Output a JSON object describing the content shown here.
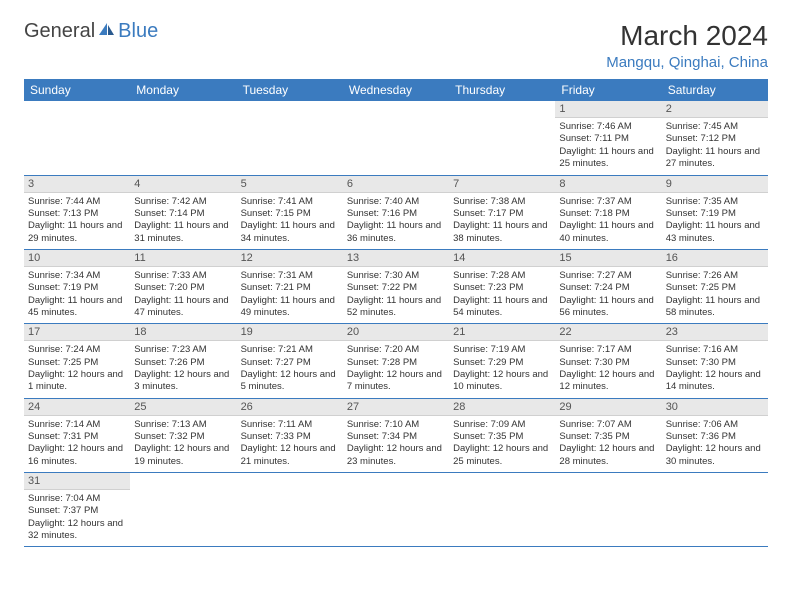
{
  "logo": {
    "text1": "General",
    "text2": "Blue"
  },
  "title": "March 2024",
  "location": "Mangqu, Qinghai, China",
  "weekdays": [
    "Sunday",
    "Monday",
    "Tuesday",
    "Wednesday",
    "Thursday",
    "Friday",
    "Saturday"
  ],
  "colors": {
    "header_bg": "#3b7bbf",
    "header_text": "#ffffff",
    "daynum_bg": "#e8e8e8",
    "row_border": "#3b7bbf",
    "accent": "#3b7bbf"
  },
  "weeks": [
    [
      null,
      null,
      null,
      null,
      null,
      {
        "n": "1",
        "sr": "Sunrise: 7:46 AM",
        "ss": "Sunset: 7:11 PM",
        "dl": "Daylight: 11 hours and 25 minutes."
      },
      {
        "n": "2",
        "sr": "Sunrise: 7:45 AM",
        "ss": "Sunset: 7:12 PM",
        "dl": "Daylight: 11 hours and 27 minutes."
      }
    ],
    [
      {
        "n": "3",
        "sr": "Sunrise: 7:44 AM",
        "ss": "Sunset: 7:13 PM",
        "dl": "Daylight: 11 hours and 29 minutes."
      },
      {
        "n": "4",
        "sr": "Sunrise: 7:42 AM",
        "ss": "Sunset: 7:14 PM",
        "dl": "Daylight: 11 hours and 31 minutes."
      },
      {
        "n": "5",
        "sr": "Sunrise: 7:41 AM",
        "ss": "Sunset: 7:15 PM",
        "dl": "Daylight: 11 hours and 34 minutes."
      },
      {
        "n": "6",
        "sr": "Sunrise: 7:40 AM",
        "ss": "Sunset: 7:16 PM",
        "dl": "Daylight: 11 hours and 36 minutes."
      },
      {
        "n": "7",
        "sr": "Sunrise: 7:38 AM",
        "ss": "Sunset: 7:17 PM",
        "dl": "Daylight: 11 hours and 38 minutes."
      },
      {
        "n": "8",
        "sr": "Sunrise: 7:37 AM",
        "ss": "Sunset: 7:18 PM",
        "dl": "Daylight: 11 hours and 40 minutes."
      },
      {
        "n": "9",
        "sr": "Sunrise: 7:35 AM",
        "ss": "Sunset: 7:19 PM",
        "dl": "Daylight: 11 hours and 43 minutes."
      }
    ],
    [
      {
        "n": "10",
        "sr": "Sunrise: 7:34 AM",
        "ss": "Sunset: 7:19 PM",
        "dl": "Daylight: 11 hours and 45 minutes."
      },
      {
        "n": "11",
        "sr": "Sunrise: 7:33 AM",
        "ss": "Sunset: 7:20 PM",
        "dl": "Daylight: 11 hours and 47 minutes."
      },
      {
        "n": "12",
        "sr": "Sunrise: 7:31 AM",
        "ss": "Sunset: 7:21 PM",
        "dl": "Daylight: 11 hours and 49 minutes."
      },
      {
        "n": "13",
        "sr": "Sunrise: 7:30 AM",
        "ss": "Sunset: 7:22 PM",
        "dl": "Daylight: 11 hours and 52 minutes."
      },
      {
        "n": "14",
        "sr": "Sunrise: 7:28 AM",
        "ss": "Sunset: 7:23 PM",
        "dl": "Daylight: 11 hours and 54 minutes."
      },
      {
        "n": "15",
        "sr": "Sunrise: 7:27 AM",
        "ss": "Sunset: 7:24 PM",
        "dl": "Daylight: 11 hours and 56 minutes."
      },
      {
        "n": "16",
        "sr": "Sunrise: 7:26 AM",
        "ss": "Sunset: 7:25 PM",
        "dl": "Daylight: 11 hours and 58 minutes."
      }
    ],
    [
      {
        "n": "17",
        "sr": "Sunrise: 7:24 AM",
        "ss": "Sunset: 7:25 PM",
        "dl": "Daylight: 12 hours and 1 minute."
      },
      {
        "n": "18",
        "sr": "Sunrise: 7:23 AM",
        "ss": "Sunset: 7:26 PM",
        "dl": "Daylight: 12 hours and 3 minutes."
      },
      {
        "n": "19",
        "sr": "Sunrise: 7:21 AM",
        "ss": "Sunset: 7:27 PM",
        "dl": "Daylight: 12 hours and 5 minutes."
      },
      {
        "n": "20",
        "sr": "Sunrise: 7:20 AM",
        "ss": "Sunset: 7:28 PM",
        "dl": "Daylight: 12 hours and 7 minutes."
      },
      {
        "n": "21",
        "sr": "Sunrise: 7:19 AM",
        "ss": "Sunset: 7:29 PM",
        "dl": "Daylight: 12 hours and 10 minutes."
      },
      {
        "n": "22",
        "sr": "Sunrise: 7:17 AM",
        "ss": "Sunset: 7:30 PM",
        "dl": "Daylight: 12 hours and 12 minutes."
      },
      {
        "n": "23",
        "sr": "Sunrise: 7:16 AM",
        "ss": "Sunset: 7:30 PM",
        "dl": "Daylight: 12 hours and 14 minutes."
      }
    ],
    [
      {
        "n": "24",
        "sr": "Sunrise: 7:14 AM",
        "ss": "Sunset: 7:31 PM",
        "dl": "Daylight: 12 hours and 16 minutes."
      },
      {
        "n": "25",
        "sr": "Sunrise: 7:13 AM",
        "ss": "Sunset: 7:32 PM",
        "dl": "Daylight: 12 hours and 19 minutes."
      },
      {
        "n": "26",
        "sr": "Sunrise: 7:11 AM",
        "ss": "Sunset: 7:33 PM",
        "dl": "Daylight: 12 hours and 21 minutes."
      },
      {
        "n": "27",
        "sr": "Sunrise: 7:10 AM",
        "ss": "Sunset: 7:34 PM",
        "dl": "Daylight: 12 hours and 23 minutes."
      },
      {
        "n": "28",
        "sr": "Sunrise: 7:09 AM",
        "ss": "Sunset: 7:35 PM",
        "dl": "Daylight: 12 hours and 25 minutes."
      },
      {
        "n": "29",
        "sr": "Sunrise: 7:07 AM",
        "ss": "Sunset: 7:35 PM",
        "dl": "Daylight: 12 hours and 28 minutes."
      },
      {
        "n": "30",
        "sr": "Sunrise: 7:06 AM",
        "ss": "Sunset: 7:36 PM",
        "dl": "Daylight: 12 hours and 30 minutes."
      }
    ],
    [
      {
        "n": "31",
        "sr": "Sunrise: 7:04 AM",
        "ss": "Sunset: 7:37 PM",
        "dl": "Daylight: 12 hours and 32 minutes."
      },
      null,
      null,
      null,
      null,
      null,
      null
    ]
  ]
}
